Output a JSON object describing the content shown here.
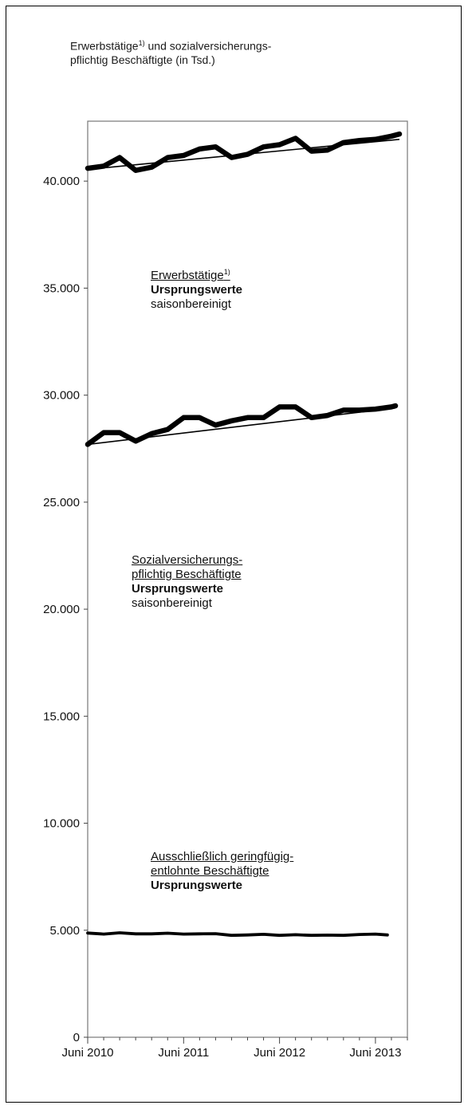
{
  "title": {
    "line1_main": "Erwerbstätige",
    "line1_sup": "1)",
    "line1_rest": " und sozialversicherungs-",
    "line2": "pflichtig Beschäftigte (in Tsd.)"
  },
  "annotations": {
    "erwerbstaetige": {
      "name": "Erwerbstätige",
      "sup": "1)",
      "raw": "Ursprungswerte",
      "sa": "saisonbereinigt"
    },
    "svb": {
      "name1": "Sozialversicherungs-",
      "name2": "pflichtig Beschäftigte",
      "raw": "Ursprungswerte",
      "sa": "saisonbereinigt"
    },
    "gering": {
      "name1": "Ausschließlich geringfügig-",
      "name2": "entlohnte Beschäftigte",
      "raw": "Ursprungswerte"
    }
  },
  "chart_data": {
    "type": "line",
    "ylim": [
      0,
      42800
    ],
    "yticks": [
      0,
      5000,
      10000,
      15000,
      20000,
      25000,
      30000,
      35000,
      40000
    ],
    "ytick_labels": [
      "0",
      "5.000",
      "10.000",
      "15.000",
      "20.000",
      "25.000",
      "30.000",
      "35.000",
      "40.000"
    ],
    "xlim": [
      0,
      40
    ],
    "xticks": [
      0,
      12,
      24,
      36
    ],
    "xtick_labels": [
      "Juni 2010",
      "Juni 2011",
      "Juni 2012",
      "Juni 2013"
    ],
    "grid": false,
    "series": [
      {
        "style": "raw",
        "x": [
          0,
          2,
          4,
          6,
          8,
          10,
          12,
          14,
          16,
          18,
          20,
          22,
          24,
          26,
          28,
          30,
          32,
          34,
          36,
          38,
          39
        ],
        "values": [
          40600,
          40700,
          41100,
          40500,
          40650,
          41100,
          41200,
          41500,
          41600,
          41100,
          41250,
          41600,
          41700,
          42000,
          41400,
          41450,
          41800,
          41900,
          41950,
          42100,
          42200
        ]
      },
      {
        "style": "sa",
        "x": [
          0,
          39
        ],
        "values": [
          40550,
          41950
        ]
      },
      {
        "style": "raw",
        "x": [
          0,
          2,
          4,
          6,
          8,
          10,
          12,
          14,
          16,
          18,
          20,
          22,
          24,
          26,
          28,
          30,
          32,
          34,
          36,
          38,
          38.5
        ],
        "values": [
          27700,
          28250,
          28250,
          27850,
          28200,
          28400,
          28950,
          28950,
          28600,
          28800,
          28950,
          28950,
          29450,
          29450,
          28950,
          29050,
          29300,
          29300,
          29350,
          29450,
          29500
        ]
      },
      {
        "style": "sa",
        "x": [
          0,
          38.5
        ],
        "values": [
          27700,
          29400
        ]
      },
      {
        "style": "thin",
        "x": [
          0,
          2,
          4,
          6,
          8,
          10,
          12,
          14,
          16,
          18,
          20,
          22,
          24,
          26,
          28,
          30,
          32,
          34,
          36,
          37.5
        ],
        "values": [
          4870,
          4820,
          4880,
          4830,
          4830,
          4860,
          4820,
          4830,
          4840,
          4760,
          4780,
          4810,
          4760,
          4790,
          4760,
          4770,
          4760,
          4800,
          4820,
          4780
        ]
      }
    ]
  }
}
